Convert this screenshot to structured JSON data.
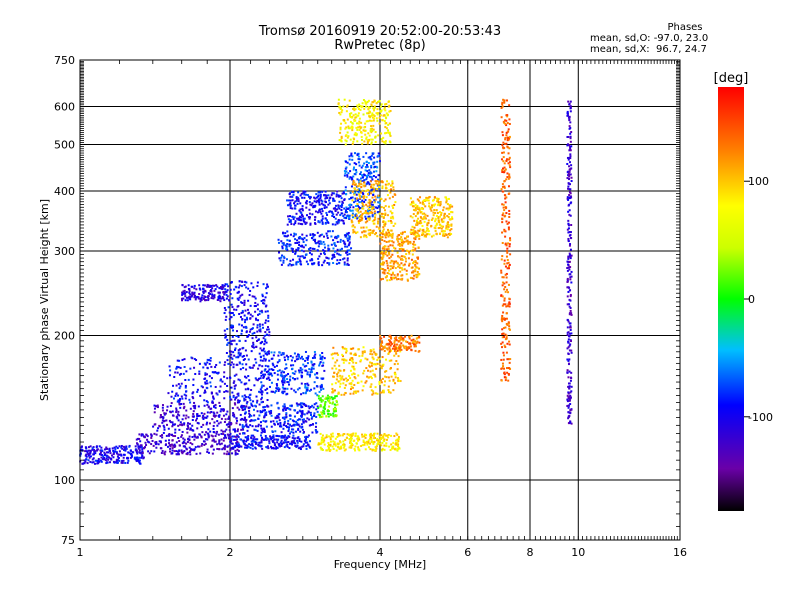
{
  "chart_data": {
    "type": "scatter",
    "title": "Tromsø 20160919 20:52:00-20:53:43",
    "subtitle": "RwPretec (8p)",
    "xlabel": "Frequency [MHz]",
    "ylabel": "Stationary phase Virtual Height [km]",
    "x_scale": "log",
    "y_scale": "log",
    "xlim": [
      1,
      16
    ],
    "ylim": [
      75,
      750
    ],
    "x_ticks": [
      1,
      2,
      4,
      6,
      8,
      10,
      16
    ],
    "y_ticks": [
      75,
      100,
      200,
      300,
      400,
      500,
      600,
      750
    ],
    "grid": true,
    "colorbar": {
      "label": "[deg]",
      "range": [
        -180,
        180
      ],
      "ticks": [
        100,
        0,
        -100
      ]
    },
    "phase_stats": {
      "header": "Phases",
      "line_o": "mean, sd,O: -97.0, 23.0",
      "line_x": "mean, sd,X:  96.7, 24.7"
    },
    "clusters": [
      {
        "x": [
          1.0,
          1.35
        ],
        "y": [
          108,
          118
        ],
        "phase": -100
      },
      {
        "x": [
          1.3,
          2.1
        ],
        "y": [
          113,
          125
        ],
        "phase": -120
      },
      {
        "x": [
          2.0,
          2.9
        ],
        "y": [
          116,
          124
        ],
        "phase": -95
      },
      {
        "x": [
          1.4,
          2.2
        ],
        "y": [
          125,
          145
        ],
        "phase": -115
      },
      {
        "x": [
          2.1,
          3.0
        ],
        "y": [
          125,
          145
        ],
        "phase": -90
      },
      {
        "x": [
          1.5,
          2.4
        ],
        "y": [
          145,
          180
        ],
        "phase": -95
      },
      {
        "x": [
          2.3,
          3.1
        ],
        "y": [
          150,
          185
        ],
        "phase": -80
      },
      {
        "x": [
          1.6,
          1.95
        ],
        "y": [
          235,
          255
        ],
        "phase": -110
      },
      {
        "x": [
          1.95,
          2.4
        ],
        "y": [
          180,
          260
        ],
        "phase": -95
      },
      {
        "x": [
          2.5,
          3.5
        ],
        "y": [
          280,
          330
        ],
        "phase": -85
      },
      {
        "x": [
          2.6,
          3.4
        ],
        "y": [
          340,
          400
        ],
        "phase": -95
      },
      {
        "x": [
          3.4,
          4.0
        ],
        "y": [
          350,
          480
        ],
        "phase": -75
      },
      {
        "x": [
          3.0,
          3.3
        ],
        "y": [
          135,
          150
        ],
        "phase": 20
      },
      {
        "x": [
          3.0,
          4.4
        ],
        "y": [
          115,
          125
        ],
        "phase": 85
      },
      {
        "x": [
          3.2,
          4.4
        ],
        "y": [
          150,
          190
        ],
        "phase": 100
      },
      {
        "x": [
          4.0,
          4.8
        ],
        "y": [
          185,
          200
        ],
        "phase": 130
      },
      {
        "x": [
          3.5,
          4.3
        ],
        "y": [
          320,
          420
        ],
        "phase": 105
      },
      {
        "x": [
          4.0,
          4.8
        ],
        "y": [
          260,
          330
        ],
        "phase": 115
      },
      {
        "x": [
          4.6,
          5.6
        ],
        "y": [
          320,
          390
        ],
        "phase": 100
      },
      {
        "x": [
          3.3,
          4.2
        ],
        "y": [
          500,
          620
        ],
        "phase": 80
      },
      {
        "x": [
          7.0,
          7.3
        ],
        "y": [
          160,
          620
        ],
        "phase": 140
      },
      {
        "x": [
          9.5,
          9.7
        ],
        "y": [
          130,
          620
        ],
        "phase": -120
      }
    ]
  }
}
